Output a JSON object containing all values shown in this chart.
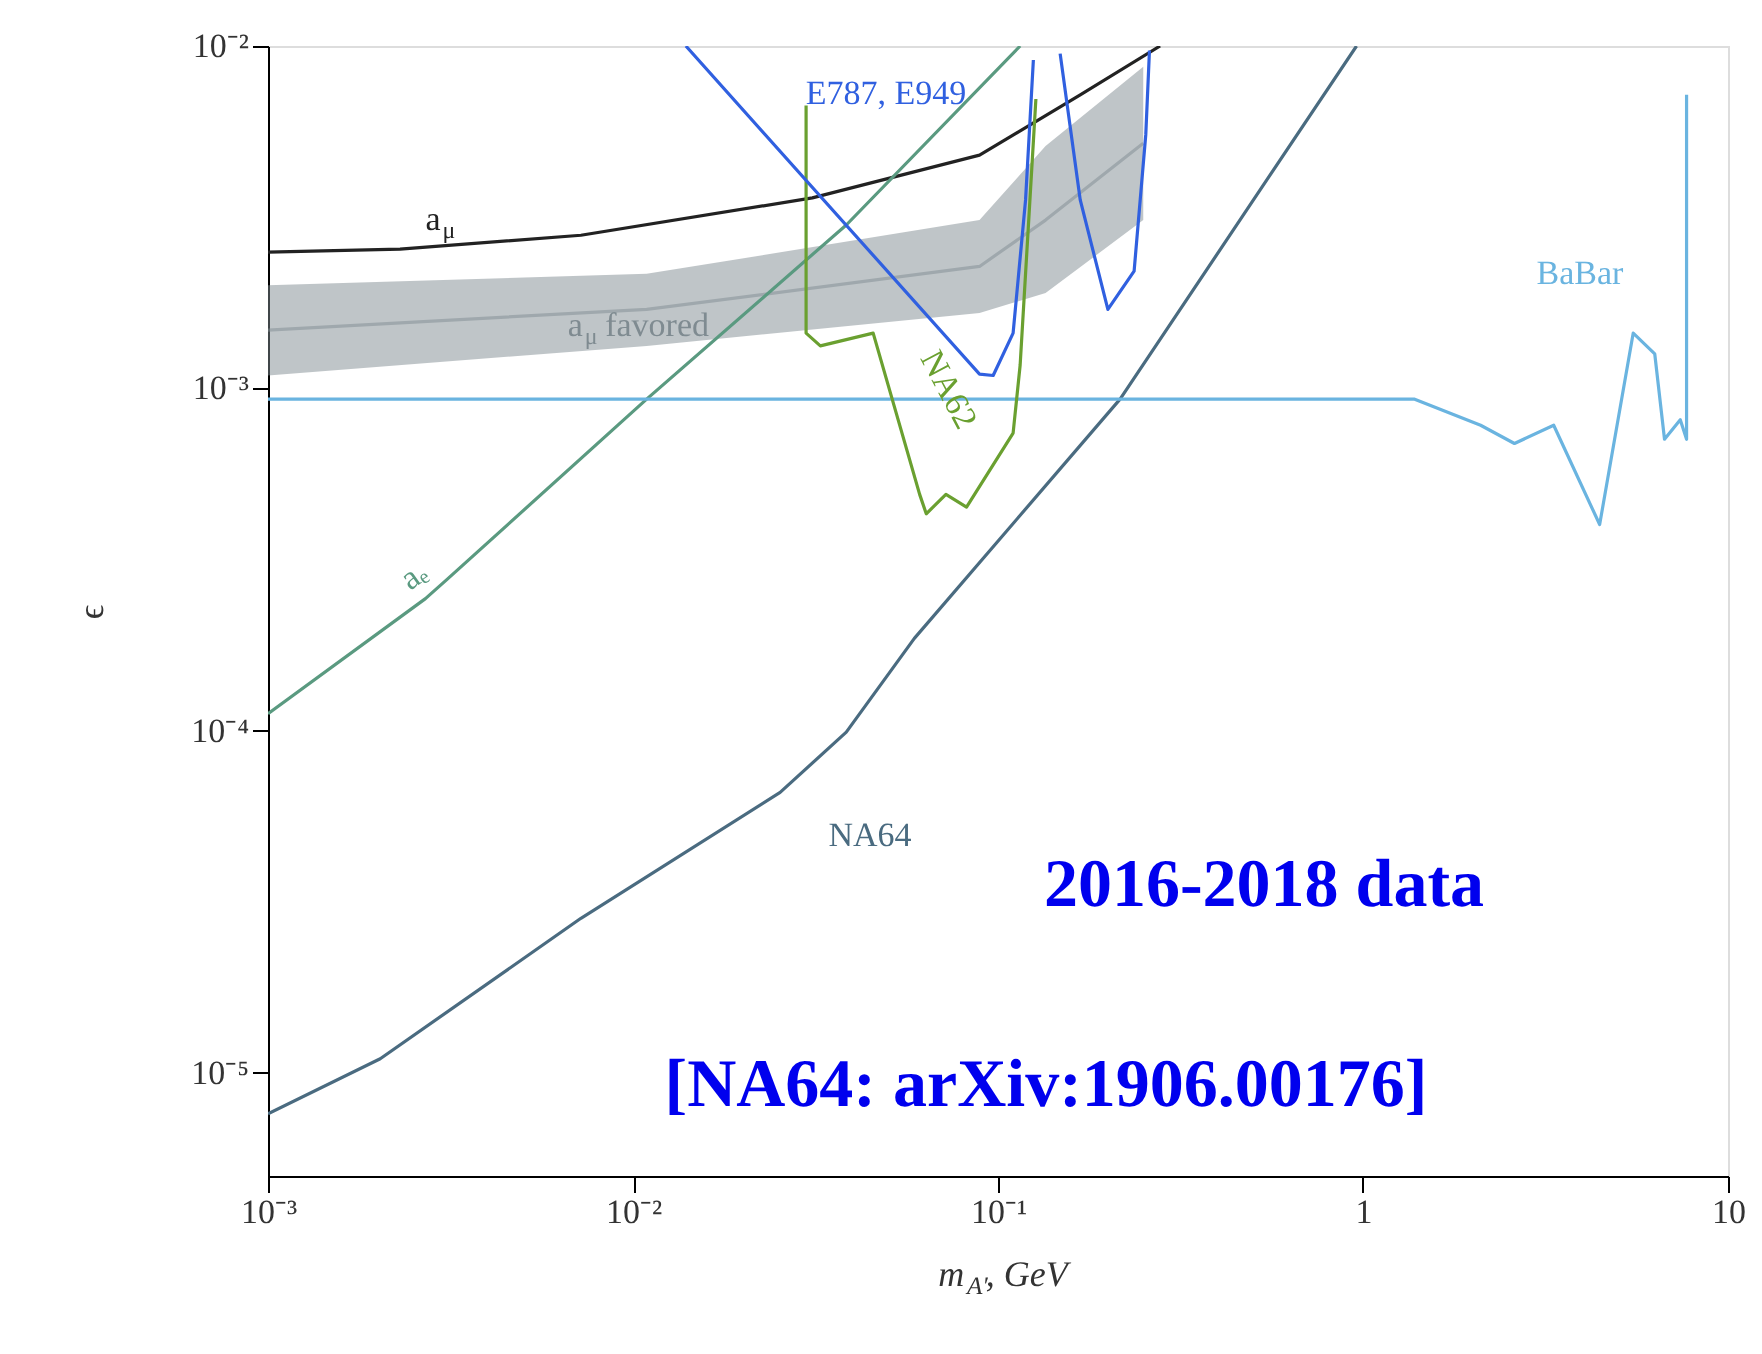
{
  "chart_data": {
    "type": "line",
    "xlabel": "m$_{A′}$, GeV",
    "ylabel": "ϵ",
    "log": "xy",
    "grid": false,
    "marker": "none",
    "line_style": "solid",
    "xlim": [
      0.001,
      10
    ],
    "ylim": [
      5e-06,
      0.01
    ],
    "xticks": [
      {
        "value": 0.001,
        "label": "10⁻³"
      },
      {
        "value": 0.01,
        "label": "10⁻²"
      },
      {
        "value": 0.1,
        "label": "10⁻¹"
      },
      1,
      10
    ],
    "yticks": [
      {
        "value": 1e-05,
        "label": "10⁻⁵"
      },
      {
        "value": 0.0001,
        "label": "10⁻⁴"
      },
      {
        "value": 0.001,
        "label": "10⁻³"
      },
      {
        "value": 0.01,
        "label": "10⁻²"
      }
    ],
    "series": [
      {
        "name": "a$_{μ}$ favored",
        "color": "#7f8b91",
        "x": [
          0.001,
          0.0109,
          0.089,
          0.135,
          0.25
        ],
        "values": [
          0.00148,
          0.0017,
          0.00227,
          0.0031,
          0.0052
        ],
        "lower": [
          0.00109,
          0.00133,
          0.00166,
          0.0019,
          0.0031
        ],
        "upper": [
          0.002,
          0.00216,
          0.0031,
          0.0051,
          0.0087
        ]
      },
      {
        "name": "NA64",
        "color": "#4a6b80",
        "x": [
          0.001,
          0.00203,
          0.0072,
          0.0253,
          0.0384,
          0.059,
          0.216,
          0.96
        ],
        "values": [
          7.6e-06,
          1.1e-05,
          2.83e-05,
          6.6e-05,
          9.9e-05,
          0.000186,
          0.00093,
          0.01
        ]
      },
      {
        "name": "a$_{μ}$",
        "color": "#222222",
        "x": [
          0.001,
          0.0023,
          0.0072,
          0.031,
          0.089,
          0.168,
          0.278
        ],
        "values": [
          0.0025,
          0.00255,
          0.0028,
          0.0036,
          0.0048,
          0.0072,
          0.01
        ]
      },
      {
        "name": "aₑ",
        "color": "#5a9a80",
        "x": [
          0.001,
          0.0027,
          0.0031,
          0.0109,
          0.0384,
          0.115
        ],
        "values": [
          0.000112,
          0.000243,
          0.000277,
          0.00093,
          0.003,
          0.01
        ]
      },
      {
        "name": "BaBar",
        "color": "#6ab4e0",
        "x": [
          0.001,
          1.38,
          2.1,
          2.6,
          3.33,
          4.45,
          5.5,
          6.3,
          6.7,
          7.4,
          7.7,
          7.7
        ],
        "values": [
          0.00093,
          0.00093,
          0.00078,
          0.00069,
          0.00078,
          0.0004,
          0.00145,
          0.00126,
          0.00071,
          0.00081,
          0.00071,
          0.0072
        ]
      },
      {
        "name": "NA62",
        "color": "#6aa030",
        "x": [
          0.0298,
          0.0298,
          0.0326,
          0.0455,
          0.061,
          0.0636,
          0.072,
          0.082,
          0.11,
          0.115,
          0.127
        ],
        "values": [
          0.0067,
          0.00145,
          0.00133,
          0.00145,
          0.00049,
          0.00043,
          0.00049,
          0.00045,
          0.00074,
          0.00117,
          0.007
        ]
      },
      {
        "name": "E787, E949",
        "color": "#3060e0",
        "x": [
          0.01396,
          0.089,
          0.097,
          0.11,
          0.119,
          0.125
        ],
        "values": [
          0.01,
          0.0011,
          0.00109,
          0.00145,
          0.00355,
          0.0091
        ]
      },
      {
        "color": "#3060e0",
        "x": [
          0.148,
          0.168,
          0.2,
          0.236,
          0.254,
          0.26
        ],
        "values": [
          0.0095,
          0.00355,
          0.0017,
          0.0022,
          0.0055,
          0.0097
        ]
      }
    ],
    "annotations": [
      "2016-2018 data",
      "[NA64: arXiv:1906.00176]"
    ]
  }
}
